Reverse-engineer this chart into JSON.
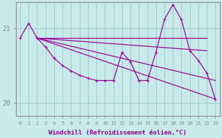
{
  "background_color": "#c8eaea",
  "grid_color": "#a0cccc",
  "line_color": "#990099",
  "xlabel": "Windchill (Refroidissement éolien,°C)",
  "xlabel_color": "#880088",
  "tick_color": "#880088",
  "axis_color": "#888888",
  "ylim": [
    19.82,
    21.35
  ],
  "xlim": [
    -0.5,
    23.5
  ],
  "yticks": [
    20,
    21
  ],
  "xticks": [
    0,
    1,
    2,
    3,
    4,
    5,
    6,
    7,
    8,
    9,
    10,
    11,
    12,
    13,
    14,
    15,
    16,
    17,
    18,
    19,
    20,
    21,
    22,
    23
  ],
  "series1_x": [
    0,
    1,
    2,
    3,
    4,
    5,
    6,
    7,
    8,
    9,
    10,
    11,
    12,
    13,
    14,
    15,
    16,
    17,
    18,
    19,
    20,
    21,
    22,
    23
  ],
  "series1_y": [
    20.87,
    21.07,
    20.87,
    20.75,
    20.6,
    20.5,
    20.43,
    20.37,
    20.33,
    20.3,
    20.3,
    20.3,
    20.68,
    20.55,
    20.3,
    20.3,
    20.68,
    21.12,
    21.32,
    21.12,
    20.7,
    20.57,
    20.4,
    20.05
  ],
  "series2_x": [
    2,
    12,
    19,
    22
  ],
  "series2_y": [
    20.87,
    20.87,
    20.87,
    20.87
  ],
  "series3_x": [
    2,
    22
  ],
  "series3_y": [
    20.87,
    20.7
  ],
  "series4_x": [
    2,
    23
  ],
  "series4_y": [
    20.87,
    20.05
  ],
  "series5_x": [
    2,
    23
  ],
  "series5_y": [
    20.87,
    20.3
  ]
}
